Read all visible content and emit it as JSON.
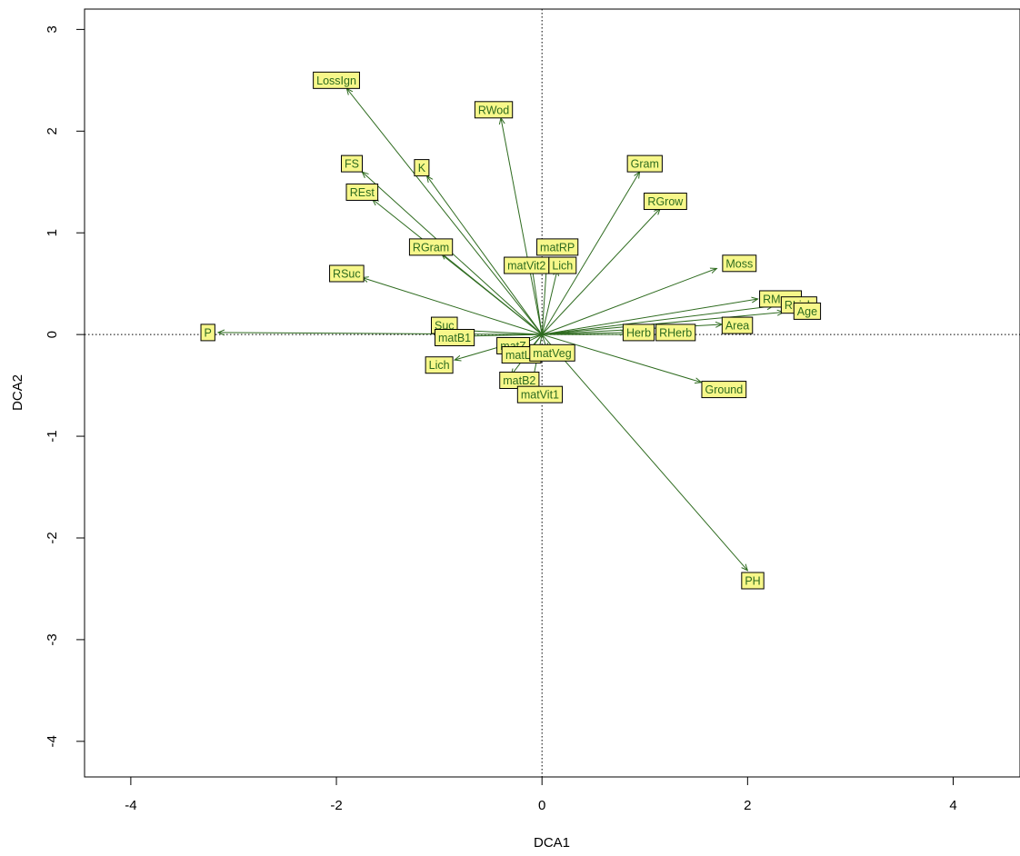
{
  "chart_data": {
    "type": "scatter",
    "subtype": "biplot-vectors",
    "title": "",
    "xlabel": "DCA1",
    "ylabel": "DCA2",
    "xlim": [
      -4.45,
      4.65
    ],
    "ylim": [
      -4.35,
      3.2
    ],
    "xticks": [
      -4,
      -2,
      0,
      2,
      4
    ],
    "yticks": [
      -4,
      -3,
      -2,
      -1,
      0,
      1,
      2,
      3
    ],
    "reference_lines": {
      "x": 0,
      "y": 0,
      "style": "dotted"
    },
    "colors": {
      "arrow": "#2e6b1f",
      "label_fill": "#f7f78a",
      "label_border": "#000000",
      "label_text": "#2e6b1f"
    },
    "vectors": [
      {
        "name": "LossIgn",
        "x": -1.9,
        "y": 2.42
      },
      {
        "name": "RWod",
        "x": -0.4,
        "y": 2.13
      },
      {
        "name": "FS",
        "x": -1.75,
        "y": 1.6
      },
      {
        "name": "K",
        "x": -1.12,
        "y": 1.56
      },
      {
        "name": "Gram",
        "x": 0.95,
        "y": 1.6
      },
      {
        "name": "REst",
        "x": -1.65,
        "y": 1.33
      },
      {
        "name": "RGrow",
        "x": 1.15,
        "y": 1.24
      },
      {
        "name": "RGram",
        "x": -0.98,
        "y": 0.8
      },
      {
        "name": "matRP",
        "x": 0.05,
        "y": 0.75
      },
      {
        "name": "matVit2",
        "x": -0.1,
        "y": 0.68
      },
      {
        "name": "Lich",
        "x": 0.15,
        "y": 0.64
      },
      {
        "name": "Moss",
        "x": 1.7,
        "y": 0.65
      },
      {
        "name": "RSuc",
        "x": -1.75,
        "y": 0.56
      },
      {
        "name": "RMoss",
        "x": 2.1,
        "y": 0.35
      },
      {
        "name": "RLich",
        "x": 2.25,
        "y": 0.28
      },
      {
        "name": "Age",
        "x": 2.35,
        "y": 0.22
      },
      {
        "name": "Area",
        "x": 1.75,
        "y": 0.1
      },
      {
        "name": "Suc",
        "x": -0.95,
        "y": 0.05
      },
      {
        "name": "P",
        "x": -3.15,
        "y": 0.02
      },
      {
        "name": "Herb",
        "x": 0.82,
        "y": 0.02
      },
      {
        "name": "RHerb",
        "x": 1.1,
        "y": 0.0
      },
      {
        "name": "matB1",
        "x": -0.95,
        "y": -0.02
      },
      {
        "name": "matZ",
        "x": -0.2,
        "y": -0.1
      },
      {
        "name": "matVeg",
        "x": 0.05,
        "y": -0.15
      },
      {
        "name": "matLV",
        "x": -0.15,
        "y": -0.18
      },
      {
        "name": "Lich",
        "x": -0.85,
        "y": -0.25
      },
      {
        "name": "Ground",
        "x": 1.55,
        "y": -0.47
      },
      {
        "name": "matB2",
        "x": -0.3,
        "y": -0.4
      },
      {
        "name": "matVit1",
        "x": -0.1,
        "y": -0.5
      },
      {
        "name": "PH",
        "x": 2.0,
        "y": -2.32
      }
    ],
    "labels": [
      {
        "text": "LossIgn",
        "x": -2.0,
        "y": 2.5
      },
      {
        "text": "RWod",
        "x": -0.47,
        "y": 2.21
      },
      {
        "text": "FS",
        "x": -1.85,
        "y": 1.68
      },
      {
        "text": "K",
        "x": -1.17,
        "y": 1.64
      },
      {
        "text": "Gram",
        "x": 1.0,
        "y": 1.68
      },
      {
        "text": "REst",
        "x": -1.75,
        "y": 1.4
      },
      {
        "text": "RGrow",
        "x": 1.2,
        "y": 1.31
      },
      {
        "text": "RGram",
        "x": -1.08,
        "y": 0.86
      },
      {
        "text": "matRP",
        "x": 0.15,
        "y": 0.86
      },
      {
        "text": "matVit2",
        "x": -0.15,
        "y": 0.68
      },
      {
        "text": "Lich",
        "x": 0.2,
        "y": 0.68
      },
      {
        "text": "Moss",
        "x": 1.92,
        "y": 0.7
      },
      {
        "text": "RSuc",
        "x": -1.9,
        "y": 0.6
      },
      {
        "text": "RMoss",
        "x": 2.32,
        "y": 0.35
      },
      {
        "text": "RLich",
        "x": 2.5,
        "y": 0.29
      },
      {
        "text": "Age",
        "x": 2.58,
        "y": 0.23
      },
      {
        "text": "Area",
        "x": 1.9,
        "y": 0.09
      },
      {
        "text": "Suc",
        "x": -0.95,
        "y": 0.09
      },
      {
        "text": "P",
        "x": -3.25,
        "y": 0.02
      },
      {
        "text": "Herb",
        "x": 0.94,
        "y": 0.02
      },
      {
        "text": "RHerb",
        "x": 1.3,
        "y": 0.02
      },
      {
        "text": "matB1",
        "x": -0.85,
        "y": -0.03
      },
      {
        "text": "matZ",
        "x": -0.28,
        "y": -0.11
      },
      {
        "text": "matLV",
        "x": -0.2,
        "y": -0.2
      },
      {
        "text": "matVeg",
        "x": 0.1,
        "y": -0.18
      },
      {
        "text": "Lich",
        "x": -1.0,
        "y": -0.3
      },
      {
        "text": "Ground",
        "x": 1.77,
        "y": -0.54
      },
      {
        "text": "matB2",
        "x": -0.22,
        "y": -0.45
      },
      {
        "text": "matVit1",
        "x": -0.02,
        "y": -0.59
      },
      {
        "text": "PH",
        "x": 2.05,
        "y": -2.42
      }
    ]
  }
}
